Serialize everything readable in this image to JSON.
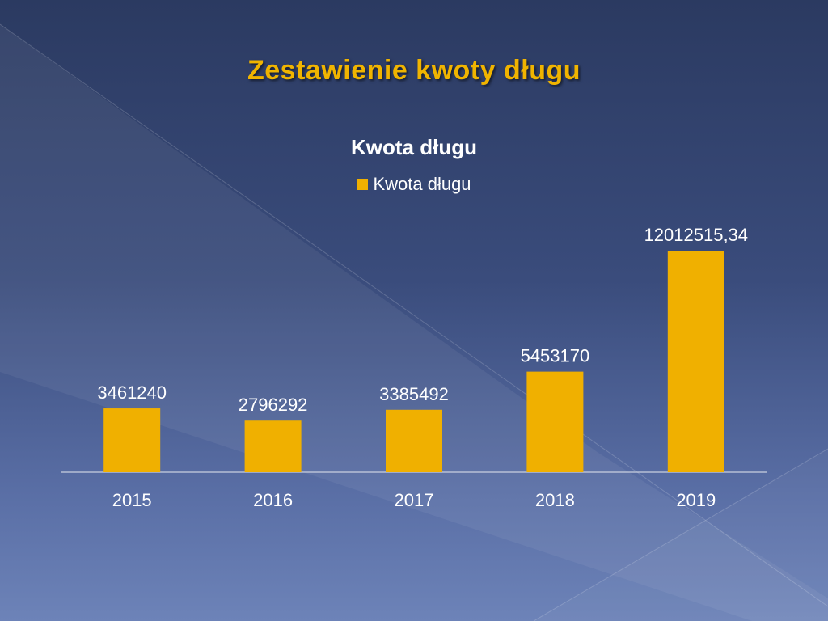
{
  "slide": {
    "title": "Zestawienie kwoty długu"
  },
  "chart_data": {
    "type": "bar",
    "title": "Kwota długu",
    "categories": [
      "2015",
      "2016",
      "2017",
      "2018",
      "2019"
    ],
    "series": [
      {
        "name": "Kwota długu",
        "values": [
          3461240,
          2796292,
          3385492,
          5453170,
          12012515.34
        ],
        "labels": [
          "3461240",
          "2796292",
          "3385492",
          "5453170",
          "12012515,34"
        ]
      }
    ],
    "xlabel": "",
    "ylabel": "",
    "ylim": [
      0,
      12012515.34
    ],
    "legend": "top",
    "grid": false,
    "colors": {
      "bar": "#f0b000",
      "axis": "#c9d0e0",
      "text": "#ffffff"
    }
  }
}
